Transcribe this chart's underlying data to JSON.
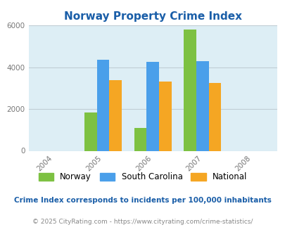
{
  "title": "Norway Property Crime Index",
  "years": [
    2004,
    2005,
    2006,
    2007,
    2008
  ],
  "bar_years": [
    2005,
    2006,
    2007
  ],
  "norway": [
    1850,
    1100,
    5800
  ],
  "south_carolina": [
    4350,
    4250,
    4300
  ],
  "national": [
    3400,
    3300,
    3250
  ],
  "norway_color": "#7dc142",
  "sc_color": "#4a9fea",
  "national_color": "#f5a623",
  "bg_color": "#ddeef5",
  "ylim": [
    0,
    6000
  ],
  "yticks": [
    0,
    2000,
    4000,
    6000
  ],
  "legend_labels": [
    "Norway",
    "South Carolina",
    "National"
  ],
  "footnote1": "Crime Index corresponds to incidents per 100,000 inhabitants",
  "footnote2": "© 2025 CityRating.com - https://www.cityrating.com/crime-statistics/",
  "title_color": "#1a5ea8",
  "footnote1_color": "#1a5ea8",
  "footnote2_color": "#888888",
  "bar_width": 0.25,
  "grid_color": "#c0cdd4"
}
